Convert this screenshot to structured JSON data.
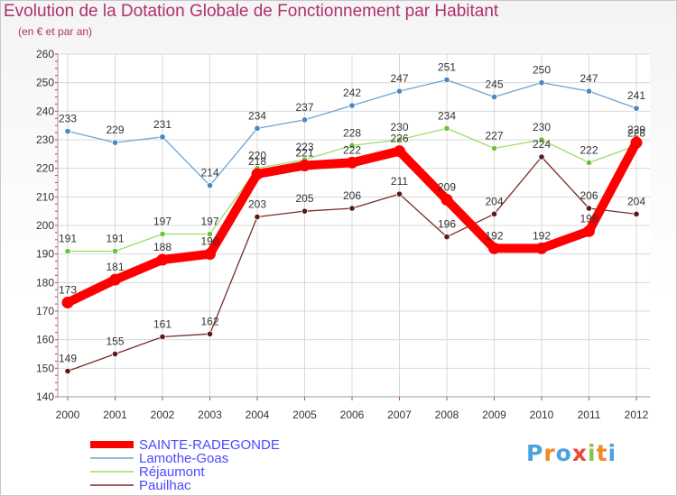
{
  "chart_data": {
    "type": "line",
    "title": "Evolution de la Dotation Globale de Fonctionnement par Habitant",
    "subtitle": "(en € et par an)",
    "categories": [
      "2000",
      "2001",
      "2002",
      "2003",
      "2004",
      "2005",
      "2006",
      "2007",
      "2008",
      "2009",
      "2010",
      "2011",
      "2012"
    ],
    "ylim": [
      140,
      260
    ],
    "yticks": [
      140,
      150,
      160,
      170,
      180,
      190,
      200,
      210,
      220,
      230,
      240,
      250,
      260
    ],
    "grid": true,
    "legend_position": "bottom-left",
    "series": [
      {
        "name": "Lamothe-Goas",
        "color": "#6ea3d1",
        "marker": "#4a86c0",
        "values": [
          233,
          229,
          231,
          214,
          234,
          237,
          242,
          247,
          251,
          245,
          250,
          247,
          241
        ]
      },
      {
        "name": "Réjaumont",
        "color": "#9edc6c",
        "marker": "#6cc23a",
        "values": [
          191,
          191,
          197,
          197,
          220,
          223,
          228,
          230,
          234,
          227,
          230,
          222,
          228
        ]
      },
      {
        "name": "Pauilhac",
        "color": "#7a2a2a",
        "marker": "#5a1a1a",
        "values": [
          149,
          155,
          161,
          162,
          203,
          205,
          206,
          211,
          196,
          204,
          224,
          206,
          204
        ]
      },
      {
        "name": "SAINTE-RADEGONDE",
        "color": "#ff0000",
        "marker": "#ff0000",
        "values": [
          173,
          181,
          188,
          190,
          218,
          221,
          222,
          226,
          209,
          192,
          192,
          198,
          229
        ]
      }
    ],
    "legend_order": [
      "SAINTE-RADEGONDE",
      "Lamothe-Goas",
      "Réjaumont",
      "Pauilhac"
    ]
  },
  "brand": {
    "letters": [
      "P",
      "r",
      "o",
      "x",
      "i",
      "t",
      "i"
    ],
    "colors": [
      "#4aa3df",
      "#f08a24",
      "#4aa3df",
      "#e64b3c",
      "#8bc34a",
      "#f08a24",
      "#4aa3df"
    ]
  }
}
